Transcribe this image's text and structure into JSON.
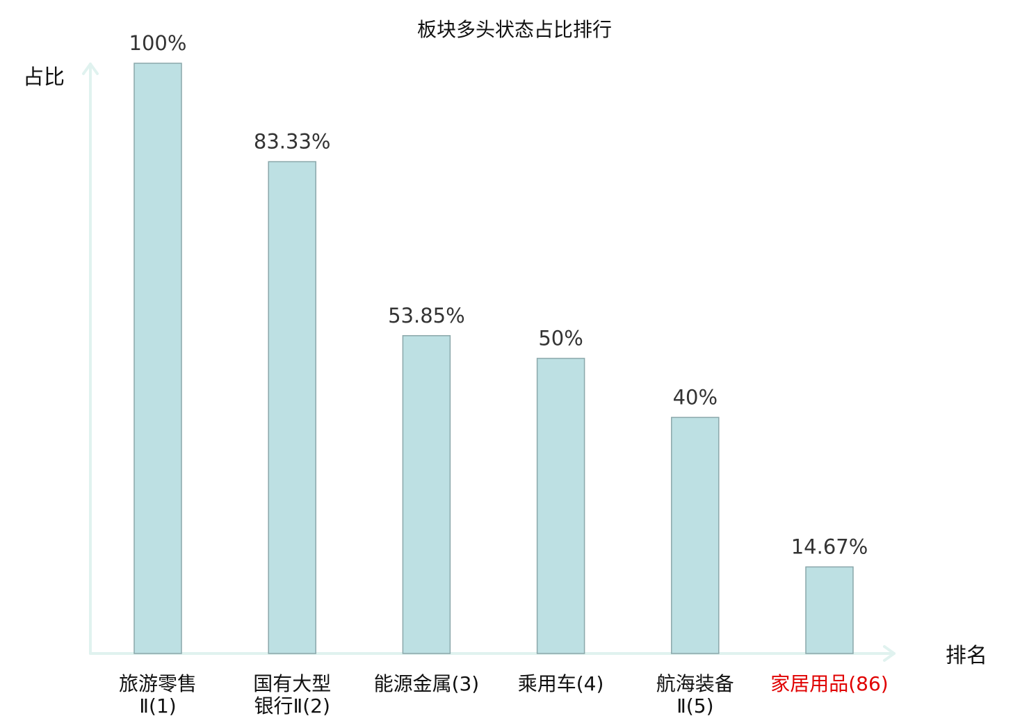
{
  "chart_data": {
    "type": "bar",
    "title": "板块多头状态占比排行",
    "ylabel": "占比",
    "xlabel": "排名",
    "ylim": [
      0,
      100
    ],
    "grid": false,
    "categories": [
      {
        "name_lines": [
          "旅游零售",
          "Ⅱ(1)"
        ],
        "highlight": false
      },
      {
        "name_lines": [
          "国有大型",
          "银行Ⅱ(2)"
        ],
        "highlight": false
      },
      {
        "name_lines": [
          "能源金属(3)"
        ],
        "highlight": false
      },
      {
        "name_lines": [
          "乘用车(4)"
        ],
        "highlight": false
      },
      {
        "name_lines": [
          "航海装备",
          "Ⅱ(5)"
        ],
        "highlight": false
      },
      {
        "name_lines": [
          "家居用品(86)"
        ],
        "highlight": true
      }
    ],
    "values": [
      100,
      83.33,
      53.85,
      50,
      40,
      14.67
    ],
    "value_labels": [
      "100%",
      "83.33%",
      "53.85%",
      "50%",
      "40%",
      "14.67%"
    ],
    "colors": {
      "bar_fill": "#bde0e3",
      "bar_stroke": "#8aa7aa",
      "axis": "#e0f2ef",
      "highlight": "#e00000"
    }
  }
}
